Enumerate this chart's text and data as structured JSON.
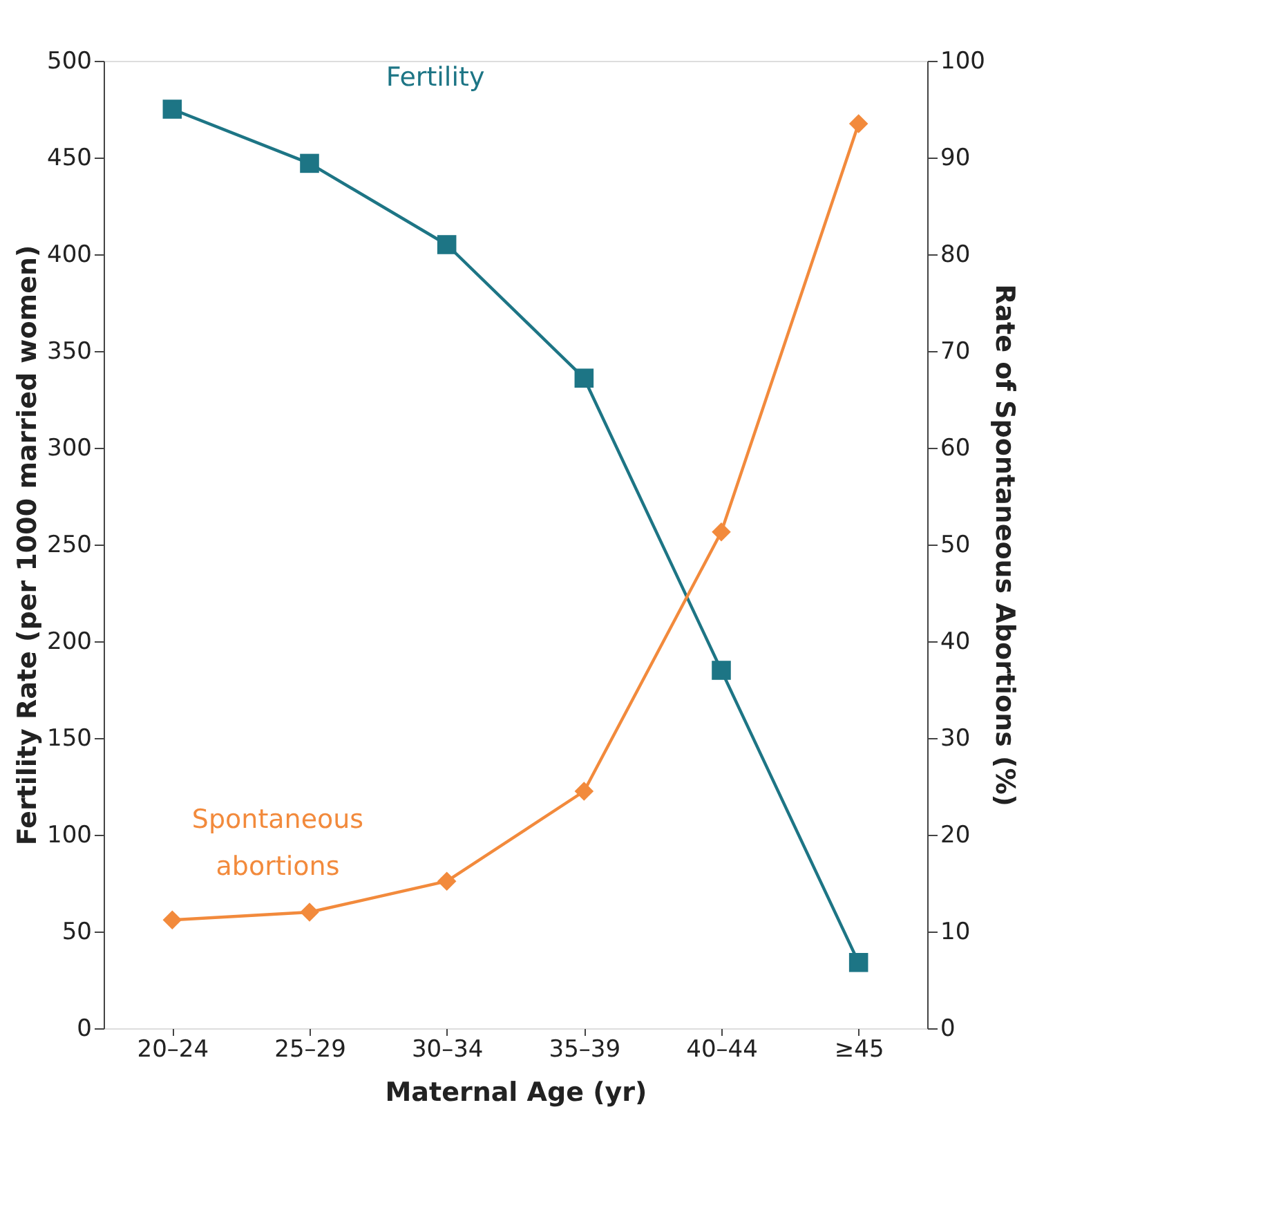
{
  "chart_data": {
    "type": "line",
    "categories": [
      "20–24",
      "25–29",
      "30–34",
      "35–39",
      "40–44",
      "≥45"
    ],
    "xlabel": "Maternal Age (yr)",
    "ylabel": "Fertility Rate (per 1000 married women)",
    "y2label": "Rate of Spontaneous Abortions (%)",
    "series": [
      {
        "name": "Fertility",
        "color": "#1d7585",
        "marker": "square",
        "values": [
          475,
          447,
          405,
          336,
          185,
          34
        ]
      },
      {
        "name": "Spontaneous abortions",
        "color": "#f28a3c",
        "marker": "diamond",
        "axis": "y2",
        "values": [
          11.2,
          12.0,
          15.2,
          24.5,
          51.3,
          93.5
        ]
      }
    ],
    "ylim": [
      0,
      500
    ],
    "yticks": [
      0,
      50,
      100,
      150,
      200,
      250,
      300,
      350,
      400,
      450,
      500
    ],
    "y2lim": [
      0,
      100
    ],
    "y2ticks": [
      0,
      10,
      20,
      30,
      40,
      50,
      60,
      70,
      80,
      90,
      100
    ],
    "grid": false
  }
}
